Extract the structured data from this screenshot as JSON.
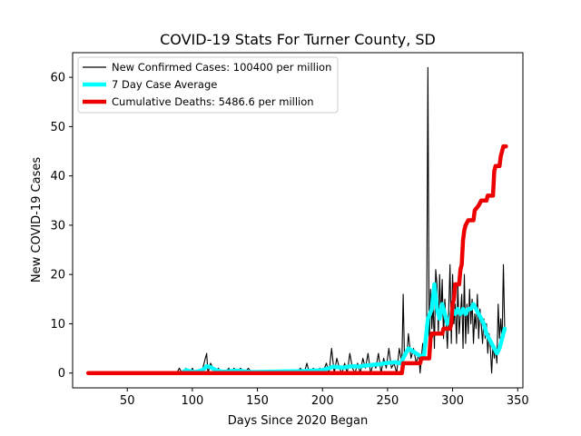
{
  "chart_data": {
    "type": "line",
    "title": "COVID-19 Stats For Turner County, SD",
    "xlabel": "Days Since 2020 Began",
    "ylabel": "New COVID-19 Cases",
    "xlim": [
      8,
      354
    ],
    "ylim": [
      -3,
      65
    ],
    "xticks": [
      50,
      100,
      150,
      200,
      250,
      300,
      350
    ],
    "yticks": [
      0,
      10,
      20,
      30,
      40,
      50,
      60
    ],
    "grid": false,
    "legend_position": "top-left",
    "series": [
      {
        "name": "New Confirmed Cases: 100400 per million",
        "color": "#000000",
        "points": [
          [
            20,
            0
          ],
          [
            30,
            0
          ],
          [
            40,
            0
          ],
          [
            50,
            0
          ],
          [
            60,
            0
          ],
          [
            70,
            0
          ],
          [
            80,
            0
          ],
          [
            88,
            0
          ],
          [
            90,
            1
          ],
          [
            92,
            0
          ],
          [
            95,
            1
          ],
          [
            98,
            0
          ],
          [
            100,
            1
          ],
          [
            102,
            0
          ],
          [
            105,
            0
          ],
          [
            108,
            1
          ],
          [
            110,
            3
          ],
          [
            111,
            4
          ],
          [
            112,
            0
          ],
          [
            114,
            2
          ],
          [
            116,
            1
          ],
          [
            118,
            0
          ],
          [
            120,
            1
          ],
          [
            122,
            0
          ],
          [
            125,
            0
          ],
          [
            128,
            1
          ],
          [
            130,
            0
          ],
          [
            132,
            1
          ],
          [
            134,
            0
          ],
          [
            137,
            1
          ],
          [
            140,
            0
          ],
          [
            143,
            1
          ],
          [
            146,
            0
          ],
          [
            150,
            0
          ],
          [
            155,
            0
          ],
          [
            160,
            0
          ],
          [
            165,
            0
          ],
          [
            170,
            0
          ],
          [
            175,
            0
          ],
          [
            180,
            0
          ],
          [
            183,
            1
          ],
          [
            186,
            0
          ],
          [
            188,
            2
          ],
          [
            190,
            0
          ],
          [
            193,
            1
          ],
          [
            195,
            0
          ],
          [
            198,
            1
          ],
          [
            200,
            0
          ],
          [
            203,
            2
          ],
          [
            205,
            0
          ],
          [
            207,
            5
          ],
          [
            209,
            0
          ],
          [
            211,
            3
          ],
          [
            213,
            1
          ],
          [
            215,
            0
          ],
          [
            217,
            2
          ],
          [
            219,
            0
          ],
          [
            221,
            4
          ],
          [
            223,
            1
          ],
          [
            225,
            0
          ],
          [
            227,
            2
          ],
          [
            229,
            0
          ],
          [
            231,
            3
          ],
          [
            233,
            1
          ],
          [
            235,
            4
          ],
          [
            237,
            0
          ],
          [
            239,
            2
          ],
          [
            241,
            1
          ],
          [
            243,
            4
          ],
          [
            245,
            0
          ],
          [
            247,
            3
          ],
          [
            249,
            1
          ],
          [
            251,
            5
          ],
          [
            253,
            1
          ],
          [
            255,
            2
          ],
          [
            257,
            0
          ],
          [
            259,
            5
          ],
          [
            261,
            2
          ],
          [
            262,
            16
          ],
          [
            263,
            3
          ],
          [
            265,
            4
          ],
          [
            266,
            8
          ],
          [
            268,
            3
          ],
          [
            270,
            5
          ],
          [
            272,
            2
          ],
          [
            274,
            4
          ],
          [
            275,
            0
          ],
          [
            277,
            6
          ],
          [
            278,
            3
          ],
          [
            280,
            8
          ],
          [
            281,
            62
          ],
          [
            282,
            4
          ],
          [
            283,
            17
          ],
          [
            284,
            9
          ],
          [
            285,
            14
          ],
          [
            286,
            5
          ],
          [
            287,
            21
          ],
          [
            288,
            18
          ],
          [
            289,
            8
          ],
          [
            290,
            20
          ],
          [
            291,
            11
          ],
          [
            292,
            19
          ],
          [
            293,
            7
          ],
          [
            294,
            15
          ],
          [
            296,
            5
          ],
          [
            297,
            13
          ],
          [
            298,
            22
          ],
          [
            299,
            6
          ],
          [
            300,
            20
          ],
          [
            301,
            10
          ],
          [
            302,
            14
          ],
          [
            303,
            6
          ],
          [
            304,
            18
          ],
          [
            305,
            8
          ],
          [
            306,
            12
          ],
          [
            307,
            16
          ],
          [
            308,
            5
          ],
          [
            309,
            20
          ],
          [
            310,
            6
          ],
          [
            311,
            14
          ],
          [
            312,
            8
          ],
          [
            313,
            17
          ],
          [
            314,
            10
          ],
          [
            315,
            15
          ],
          [
            316,
            6
          ],
          [
            317,
            12
          ],
          [
            318,
            9
          ],
          [
            319,
            16
          ],
          [
            320,
            7
          ],
          [
            321,
            13
          ],
          [
            322,
            10
          ],
          [
            323,
            6
          ],
          [
            324,
            11
          ],
          [
            325,
            7
          ],
          [
            326,
            10
          ],
          [
            327,
            4
          ],
          [
            328,
            8
          ],
          [
            329,
            5
          ],
          [
            330,
            0
          ],
          [
            331,
            6
          ],
          [
            332,
            3
          ],
          [
            333,
            5
          ],
          [
            334,
            2
          ],
          [
            335,
            14
          ],
          [
            336,
            7
          ],
          [
            337,
            11
          ],
          [
            338,
            6
          ],
          [
            339,
            22
          ],
          [
            340,
            9
          ]
        ]
      },
      {
        "name": "7 Day Case Average",
        "color": "#00ffff",
        "points": [
          [
            92,
            0
          ],
          [
            95,
            0.6
          ],
          [
            98,
            0.4
          ],
          [
            102,
            0.2
          ],
          [
            108,
            0.6
          ],
          [
            111,
            1.4
          ],
          [
            114,
            1.2
          ],
          [
            118,
            0.6
          ],
          [
            122,
            0.3
          ],
          [
            126,
            0.3
          ],
          [
            130,
            0.4
          ],
          [
            134,
            0.5
          ],
          [
            138,
            0.4
          ],
          [
            142,
            0.3
          ],
          [
            146,
            0.2
          ],
          [
            186,
            0.4
          ],
          [
            190,
            0.5
          ],
          [
            195,
            0.5
          ],
          [
            200,
            0.6
          ],
          [
            204,
            0.9
          ],
          [
            208,
            1.3
          ],
          [
            212,
            1.2
          ],
          [
            216,
            1.1
          ],
          [
            220,
            1.3
          ],
          [
            224,
            1.4
          ],
          [
            228,
            1.3
          ],
          [
            232,
            1.5
          ],
          [
            236,
            1.6
          ],
          [
            240,
            1.7
          ],
          [
            244,
            1.8
          ],
          [
            248,
            2
          ],
          [
            252,
            2.1
          ],
          [
            256,
            2.2
          ],
          [
            260,
            2
          ],
          [
            263,
            3.5
          ],
          [
            266,
            5
          ],
          [
            269,
            4.5
          ],
          [
            272,
            4
          ],
          [
            275,
            3.5
          ],
          [
            278,
            3.5
          ],
          [
            281,
            11
          ],
          [
            284,
            13
          ],
          [
            286,
            18
          ],
          [
            288,
            13
          ],
          [
            290,
            11
          ],
          [
            292,
            14
          ],
          [
            294,
            12
          ],
          [
            296,
            10
          ],
          [
            298,
            11
          ],
          [
            300,
            13
          ],
          [
            302,
            12
          ],
          [
            304,
            13
          ],
          [
            306,
            12
          ],
          [
            308,
            13
          ],
          [
            310,
            12
          ],
          [
            312,
            13
          ],
          [
            314,
            13
          ],
          [
            316,
            14
          ],
          [
            318,
            13
          ],
          [
            320,
            12
          ],
          [
            322,
            11
          ],
          [
            324,
            10
          ],
          [
            326,
            8
          ],
          [
            328,
            7
          ],
          [
            330,
            6
          ],
          [
            332,
            5
          ],
          [
            334,
            4
          ],
          [
            336,
            5
          ],
          [
            338,
            7
          ],
          [
            340,
            9
          ]
        ]
      },
      {
        "name": "Cumulative Deaths: 5486.6 per million",
        "color": "#ee0000",
        "points": [
          [
            20,
            0
          ],
          [
            100,
            0
          ],
          [
            150,
            0
          ],
          [
            200,
            0
          ],
          [
            261,
            0
          ],
          [
            262,
            2
          ],
          [
            275,
            2
          ],
          [
            276,
            3
          ],
          [
            282,
            3
          ],
          [
            283,
            7
          ],
          [
            284,
            8
          ],
          [
            292,
            8
          ],
          [
            293,
            9
          ],
          [
            298,
            9
          ],
          [
            299,
            10
          ],
          [
            300,
            14
          ],
          [
            301,
            15
          ],
          [
            302,
            18
          ],
          [
            305,
            18
          ],
          [
            306,
            21
          ],
          [
            307,
            22
          ],
          [
            308,
            27
          ],
          [
            309,
            29
          ],
          [
            310,
            30
          ],
          [
            312,
            31
          ],
          [
            316,
            31
          ],
          [
            317,
            33
          ],
          [
            320,
            34
          ],
          [
            322,
            35
          ],
          [
            326,
            35
          ],
          [
            327,
            36
          ],
          [
            331,
            36
          ],
          [
            332,
            41
          ],
          [
            333,
            42
          ],
          [
            336,
            42
          ],
          [
            337,
            44
          ],
          [
            338,
            45
          ],
          [
            339,
            46
          ],
          [
            341,
            46
          ]
        ]
      }
    ]
  }
}
